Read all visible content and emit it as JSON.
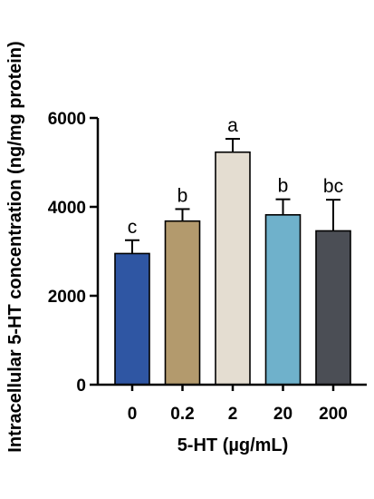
{
  "chart_data": {
    "type": "bar",
    "title": "",
    "xlabel": "5-HT (µg/mL)",
    "ylabel": "Intracellular 5-HT concentration (ng/mg protein)",
    "categories": [
      "0",
      "0.2",
      "2",
      "20",
      "200"
    ],
    "values": [
      2950,
      3680,
      5230,
      3820,
      3460
    ],
    "error": [
      300,
      270,
      300,
      350,
      700
    ],
    "significance": [
      "c",
      "b",
      "a",
      "b",
      "bc"
    ],
    "colors": [
      "#2f56a3",
      "#b39a6d",
      "#e4ddd1",
      "#6fb1cb",
      "#4b4e55"
    ],
    "ylim": [
      0,
      6000
    ],
    "yticks": [
      0,
      2000,
      4000,
      6000
    ],
    "grid": false
  }
}
